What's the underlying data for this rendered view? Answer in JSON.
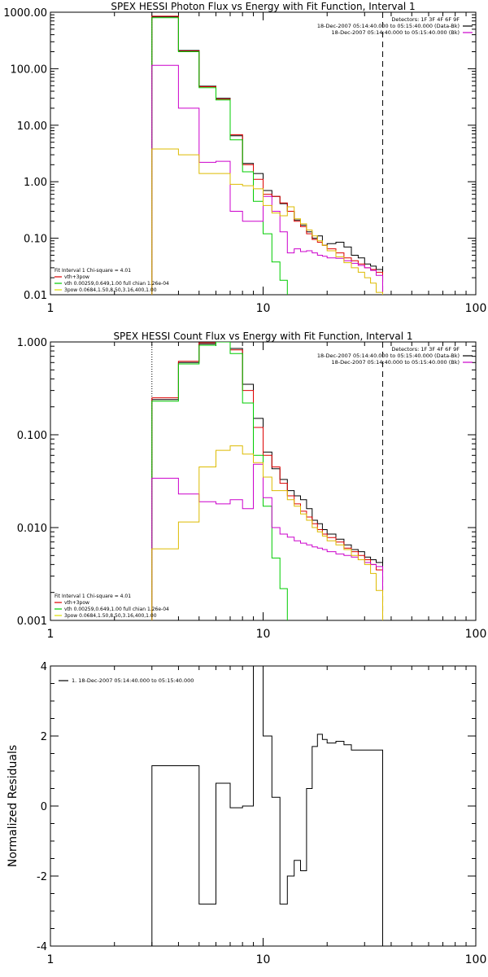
{
  "chart_data": [
    {
      "type": "line",
      "title": "SPEX HESSI Photon Flux vs Energy with Fit Function, Interval 1",
      "xlabel": "",
      "ylabel": "",
      "x_scale": "log",
      "y_scale": "log",
      "xlim": [
        1,
        100
      ],
      "ylim": [
        0.01,
        1000
      ],
      "x_ticks": [
        1,
        10,
        100
      ],
      "x_tick_labels": [
        "1",
        "10",
        "100"
      ],
      "y_ticks": [
        0.01,
        0.1,
        1,
        10,
        100,
        1000
      ],
      "y_tick_labels": [
        "0.01",
        "0.10",
        "1.00",
        "10.00",
        "100.00",
        "1000.00"
      ],
      "legend_top_right": [
        {
          "label": "Detectors: 1F 3F 4F 6F 9F",
          "color": ""
        },
        {
          "label": "18-Dec-2007 05:14:40.000 to 05:15:40.000 (Data-Bk)",
          "color": "#000000"
        },
        {
          "label": "18-Dec-2007 05:14:40.000 to 05:15:40.000 (Bk)",
          "color": "#cc00cc"
        }
      ],
      "legend_bottom_left": [
        {
          "label": "Fit Interval 1   Chi-square = 4.01",
          "color": ""
        },
        {
          "label": "vth+3pow",
          "color": "#dd0000"
        },
        {
          "label": "vth 0.00259,0.649,1.00  full chian 1.26e-04",
          "color": "#00cc00"
        },
        {
          "label": "3pow 0.0684,1.50,8.50,3.16,400,1.00",
          "color": "#dddd00"
        }
      ],
      "vlines": [
        {
          "x": 3.0,
          "style": "dotted",
          "color": "#000000"
        },
        {
          "x": 36.5,
          "style": "dashed",
          "color": "#000000"
        }
      ],
      "series": [
        {
          "color": "#000000",
          "edges": [
            3,
            4,
            5,
            6,
            7,
            8,
            9,
            10,
            11,
            12,
            13,
            14,
            15,
            16,
            17,
            18,
            19,
            20,
            22,
            24,
            26,
            28,
            30,
            32,
            34,
            36.5
          ],
          "values": [
            830,
            210,
            49,
            30,
            6.5,
            2.1,
            1.4,
            0.7,
            0.55,
            0.41,
            0.3,
            0.21,
            0.17,
            0.13,
            0.1,
            0.11,
            0.075,
            0.08,
            0.085,
            0.07,
            0.05,
            0.045,
            0.035,
            0.032,
            0.028
          ]
        },
        {
          "color": "#dd0000",
          "edges": [
            3,
            4,
            5,
            6,
            7,
            8,
            9,
            10,
            11,
            12,
            13,
            14,
            15,
            16,
            17,
            18,
            19,
            20,
            22,
            24,
            26,
            28,
            30,
            32,
            34,
            36.5
          ],
          "values": [
            850,
            205,
            48,
            29,
            6.8,
            2.0,
            1.1,
            0.6,
            0.55,
            0.42,
            0.3,
            0.2,
            0.16,
            0.12,
            0.095,
            0.085,
            0.075,
            0.065,
            0.055,
            0.045,
            0.04,
            0.035,
            0.03,
            0.028,
            0.025
          ]
        },
        {
          "color": "#00cc00",
          "edges": [
            3,
            4,
            5,
            6,
            7,
            8,
            9,
            10,
            11,
            12,
            13
          ],
          "values": [
            800,
            200,
            46,
            28,
            5.5,
            1.5,
            0.45,
            0.12,
            0.038,
            0.018
          ]
        },
        {
          "color": "#cc00cc",
          "edges": [
            3,
            4,
            5,
            6,
            7,
            8,
            9,
            10,
            11,
            12,
            13,
            14,
            15,
            16,
            17,
            18,
            19,
            20,
            22,
            24,
            26,
            28,
            30,
            32,
            34,
            36.5
          ],
          "values": [
            115,
            20,
            2.2,
            2.3,
            0.3,
            0.2,
            0.2,
            0.55,
            0.3,
            0.13,
            0.055,
            0.065,
            0.058,
            0.06,
            0.055,
            0.05,
            0.048,
            0.045,
            0.044,
            0.04,
            0.036,
            0.033,
            0.03,
            0.027,
            0.022
          ]
        },
        {
          "color": "#ddbb00",
          "edges": [
            3,
            4,
            5,
            6,
            7,
            8,
            9,
            10,
            11,
            12,
            13,
            14,
            15,
            16,
            17,
            18,
            19,
            20,
            22,
            24,
            26,
            28,
            30,
            32,
            34,
            36.5
          ],
          "values": [
            3.8,
            3.0,
            1.4,
            1.4,
            0.9,
            0.85,
            0.75,
            0.38,
            0.28,
            0.25,
            0.36,
            0.22,
            0.18,
            0.14,
            0.11,
            0.09,
            0.075,
            0.06,
            0.047,
            0.037,
            0.03,
            0.025,
            0.02,
            0.016,
            0.011
          ]
        }
      ]
    },
    {
      "type": "line",
      "title": "SPEX HESSI Count Flux vs Energy with Fit Function, Interval 1",
      "xlabel": "",
      "ylabel": "",
      "x_scale": "log",
      "y_scale": "log",
      "xlim": [
        1,
        100
      ],
      "ylim": [
        0.001,
        1.0
      ],
      "x_ticks": [
        1,
        10,
        100
      ],
      "x_tick_labels": [
        "1",
        "10",
        "100"
      ],
      "y_ticks": [
        0.001,
        0.01,
        0.1,
        1
      ],
      "y_tick_labels": [
        "0.001",
        "0.010",
        "0.100",
        "1.000"
      ],
      "legend_top_right": [
        {
          "label": "Detectors: 1F 3F 4F 6F 9F",
          "color": ""
        },
        {
          "label": "18-Dec-2007 05:14:40.000 to 05:15:40.000 (Data-Bk)",
          "color": "#000000"
        },
        {
          "label": "18-Dec-2007 05:14:40.000 to 05:15:40.000 (Bk)",
          "color": "#cc00cc"
        }
      ],
      "legend_bottom_left": [
        {
          "label": "Fit Interval 1   Chi-square = 4.01",
          "color": ""
        },
        {
          "label": "vth+3pow",
          "color": "#dd0000"
        },
        {
          "label": "vth 0.00259,0.649,1.00  full chian 1.26e-04",
          "color": "#00cc00"
        },
        {
          "label": "3pow 0.0684,1.50,8.50,3.16,400,1.00",
          "color": "#dddd00"
        }
      ],
      "vlines": [
        {
          "x": 3.0,
          "style": "dotted",
          "color": "#000000"
        },
        {
          "x": 36.5,
          "style": "dashed",
          "color": "#000000"
        }
      ],
      "series": [
        {
          "color": "#000000",
          "edges": [
            3,
            4,
            5,
            6,
            7,
            8,
            9,
            10,
            11,
            12,
            13,
            14,
            15,
            16,
            17,
            18,
            19,
            20,
            22,
            24,
            26,
            28,
            30,
            32,
            34,
            36.5
          ],
          "values": [
            0.24,
            0.6,
            0.95,
            1.0,
            0.85,
            0.35,
            0.15,
            0.065,
            0.043,
            0.033,
            0.025,
            0.022,
            0.02,
            0.016,
            0.012,
            0.011,
            0.0095,
            0.0085,
            0.0075,
            0.0065,
            0.0058,
            0.0055,
            0.0048,
            0.0045,
            0.0042
          ]
        },
        {
          "color": "#dd0000",
          "edges": [
            3,
            4,
            5,
            6,
            7,
            8,
            9,
            10,
            11,
            12,
            13,
            14,
            15,
            16,
            17,
            18,
            19,
            20,
            22,
            24,
            26,
            28,
            30,
            32,
            34,
            36.5
          ],
          "values": [
            0.25,
            0.62,
            0.98,
            1.0,
            0.82,
            0.3,
            0.12,
            0.06,
            0.045,
            0.03,
            0.022,
            0.018,
            0.015,
            0.013,
            0.011,
            0.0095,
            0.0085,
            0.0078,
            0.007,
            0.006,
            0.0055,
            0.005,
            0.0045,
            0.004,
            0.0035
          ]
        },
        {
          "color": "#00cc00",
          "edges": [
            3,
            4,
            5,
            6,
            7,
            8,
            9,
            10,
            11,
            12,
            13
          ],
          "values": [
            0.23,
            0.58,
            0.92,
            1.0,
            0.75,
            0.22,
            0.06,
            0.017,
            0.0047,
            0.0022
          ]
        },
        {
          "color": "#cc00cc",
          "edges": [
            3,
            4,
            5,
            6,
            7,
            8,
            9,
            10,
            11,
            12,
            13,
            14,
            15,
            16,
            17,
            18,
            19,
            20,
            22,
            24,
            26,
            28,
            30,
            32,
            34,
            36.5
          ],
          "values": [
            0.034,
            0.023,
            0.019,
            0.018,
            0.02,
            0.016,
            0.048,
            0.021,
            0.01,
            0.0085,
            0.0079,
            0.0072,
            0.0068,
            0.0065,
            0.0062,
            0.006,
            0.0058,
            0.0055,
            0.0052,
            0.005,
            0.0048,
            0.0045,
            0.0042,
            0.004,
            0.0038
          ]
        },
        {
          "color": "#ddbb00",
          "edges": [
            3,
            4,
            5,
            6,
            7,
            8,
            9,
            10,
            11,
            12,
            13,
            14,
            15,
            16,
            17,
            18,
            19,
            20,
            22,
            24,
            26,
            28,
            30,
            32,
            34,
            36.5
          ],
          "values": [
            0.0059,
            0.0115,
            0.045,
            0.068,
            0.076,
            0.062,
            0.05,
            0.035,
            0.025,
            0.025,
            0.02,
            0.017,
            0.014,
            0.012,
            0.01,
            0.009,
            0.0081,
            0.0072,
            0.0065,
            0.0058,
            0.005,
            0.0045,
            0.004,
            0.0032,
            0.0021
          ]
        }
      ]
    },
    {
      "type": "line",
      "title": "",
      "xlabel": "",
      "ylabel": "Normalized Residuals",
      "x_scale": "log",
      "y_scale": "linear",
      "xlim": [
        1,
        100
      ],
      "ylim": [
        -4,
        4
      ],
      "x_ticks": [
        1,
        10,
        100
      ],
      "x_tick_labels": [
        "1",
        "10",
        "100"
      ],
      "y_ticks": [
        -4,
        -2,
        0,
        2,
        4
      ],
      "y_tick_labels": [
        "-4",
        "-2",
        "0",
        "2",
        "4"
      ],
      "legend_top_left": [
        {
          "label": "1. 18-Dec-2007 05:14:40.000 to 05:15:40.000",
          "color": "#000000"
        }
      ],
      "series": [
        {
          "color": "#000000",
          "edges": [
            3,
            5,
            6,
            7,
            8,
            9,
            10,
            11,
            12,
            13,
            14,
            15,
            16,
            17,
            18,
            19,
            20,
            22,
            24,
            26,
            28,
            30,
            32,
            34,
            36.5
          ],
          "values": [
            1.15,
            -2.8,
            0.65,
            -0.05,
            0.0,
            4.0,
            2.0,
            0.25,
            -2.8,
            -2.0,
            -1.55,
            -1.85,
            0.5,
            1.7,
            2.05,
            1.9,
            1.8,
            1.85,
            1.75,
            1.6,
            1.6,
            1.6,
            1.6,
            1.6
          ]
        }
      ]
    }
  ]
}
